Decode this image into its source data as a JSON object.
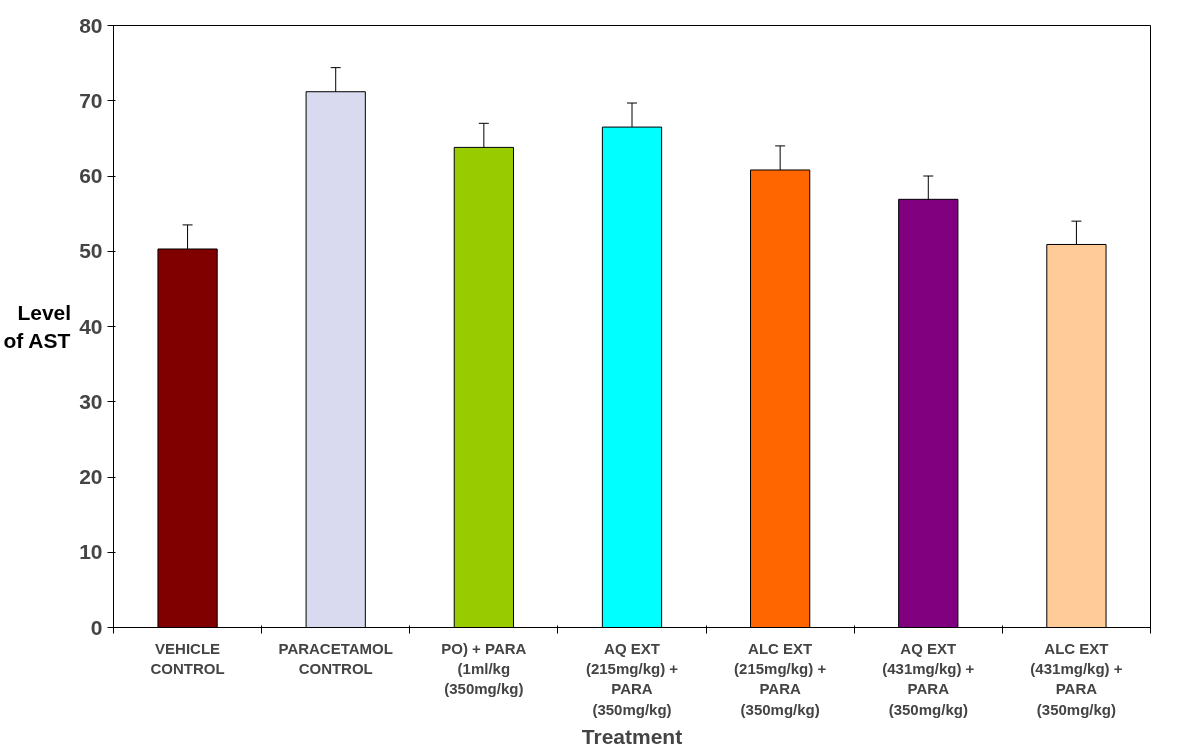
{
  "chart_data": {
    "type": "bar",
    "xlabel": "Treatment",
    "ylabel": "Level\nof AST",
    "categories": [
      "VEHICLE\nCONTROL",
      "PARACETAMOL\nCONTROL",
      "PO) + PARA\n(1ml/kg\n(350mg/kg)",
      "AQ EXT\n(215mg/kg) +\nPARA\n(350mg/kg)",
      "ALC EXT\n(215mg/kg) +\nPARA\n(350mg/kg)",
      "AQ EXT\n(431mg/kg) +\nPARA\n(350mg/kg)",
      "ALC EXT\n(431mg/kg) +\nPARA\n(350mg/kg)"
    ],
    "values": [
      50.3,
      71.2,
      63.8,
      66.5,
      60.8,
      56.9,
      50.9
    ],
    "errors": [
      3.2,
      3.2,
      3.2,
      3.2,
      3.2,
      3.1,
      3.1
    ],
    "colors": [
      "#800000",
      "#d9d9ef",
      "#99cc00",
      "#00ffff",
      "#ff6600",
      "#800080",
      "#ffcc99"
    ],
    "ylim": [
      0,
      80
    ],
    "yticks": [
      0,
      10,
      20,
      30,
      40,
      50,
      60,
      70,
      80
    ],
    "grid": false
  }
}
